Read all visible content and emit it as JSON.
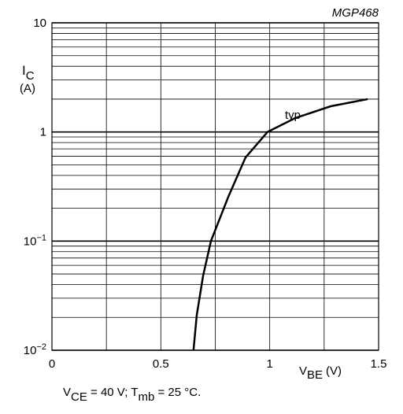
{
  "chart_data": {
    "type": "line",
    "id": "MGP468",
    "xlabel": {
      "main": "V",
      "sub": "BE",
      "unit": "(V)"
    },
    "ylabel": {
      "main": "I",
      "sub": "C",
      "unit": "(A)"
    },
    "caption": [
      {
        "text": "V",
        "sub": false
      },
      {
        "text": "CE",
        "sub": true
      },
      {
        "text": " = 40 V; T",
        "sub": false
      },
      {
        "text": "mb",
        "sub": true
      },
      {
        "text": " = 25 °C.",
        "sub": false
      }
    ],
    "annotation": "typ",
    "log_y": true,
    "grid": true,
    "color": "#000000",
    "xlim": [
      0,
      1.5
    ],
    "ylim": [
      0.01,
      10
    ],
    "xticks": [
      0,
      0.5,
      1,
      1.5
    ],
    "xminor_ticks": [
      0.25,
      0.75,
      1.25
    ],
    "yticks": [
      {
        "value": 10,
        "label": "10"
      },
      {
        "value": 1,
        "label": "1"
      },
      {
        "value": 0.1,
        "label": "10",
        "sup": "−1"
      },
      {
        "value": 0.01,
        "label": "10",
        "sup": "−2"
      }
    ],
    "yminor_ticks": [
      0.02,
      0.03,
      0.04,
      0.05,
      0.06,
      0.07,
      0.08,
      0.09,
      0.2,
      0.3,
      0.4,
      0.5,
      0.6,
      0.7,
      0.8,
      0.9,
      2,
      3,
      4,
      5,
      6,
      7,
      8,
      9
    ],
    "series": [
      {
        "name": "typ",
        "x": [
          0.65,
          0.665,
          0.694,
          0.73,
          0.81,
          0.889,
          0.99,
          1.117,
          1.28,
          1.45
        ],
        "values": [
          0.01,
          0.021,
          0.048,
          0.1,
          0.255,
          0.584,
          1,
          1.34,
          1.72,
          2.0
        ]
      }
    ]
  }
}
